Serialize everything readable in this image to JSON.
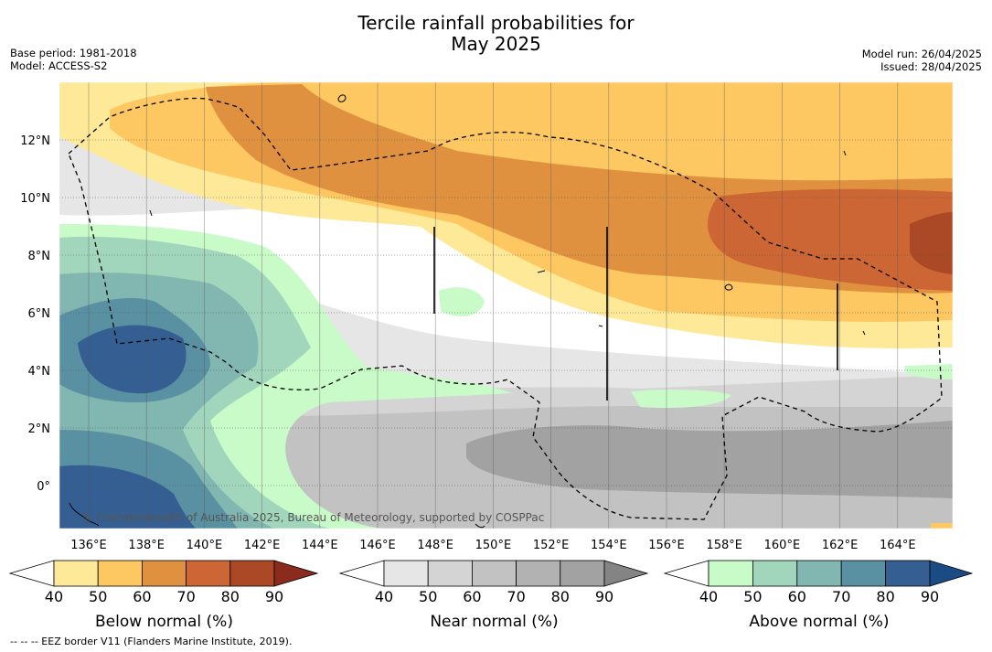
{
  "header": {
    "title_line1": "Tercile rainfall probabilities for",
    "title_line2": "May 2025",
    "base_period": "Base period: 1981-2018",
    "model": "Model: ACCESS-S2",
    "model_run": "Model run: 26/04/2025",
    "issued": "Issued: 28/04/2025"
  },
  "map": {
    "lat_ticks": [
      "12°N",
      "10°N",
      "8°N",
      "6°N",
      "4°N",
      "2°N",
      "0°"
    ],
    "lon_ticks": [
      "136°E",
      "138°E",
      "140°E",
      "142°E",
      "144°E",
      "146°E",
      "148°E",
      "150°E",
      "152°E",
      "154°E",
      "156°E",
      "158°E",
      "160°E",
      "162°E",
      "164°E"
    ],
    "copyright": "© Commonwealth of Australia 2025, Bureau of Meteorology, supported by COSPPac",
    "land_color": "#000000",
    "eez_line_color": "#000000"
  },
  "legend": {
    "colorbars": [
      {
        "label": "Below normal (%)",
        "ticks": [
          "40",
          "50",
          "60",
          "70",
          "80",
          "90"
        ],
        "colors": [
          "#ffffff",
          "#fee999",
          "#fdc762",
          "#e09140",
          "#cc6634",
          "#ab4826",
          "#8a2b1d"
        ]
      },
      {
        "label": "Near normal (%)",
        "ticks": [
          "40",
          "50",
          "60",
          "70",
          "80",
          "90"
        ],
        "colors": [
          "#ffffff",
          "#e6e6e6",
          "#d4d4d4",
          "#c2c2c2",
          "#b2b2b2",
          "#a2a2a2",
          "#848484"
        ]
      },
      {
        "label": "Above normal (%)",
        "ticks": [
          "40",
          "50",
          "60",
          "70",
          "80",
          "90"
        ],
        "colors": [
          "#ffffff",
          "#c9fbc9",
          "#a1d6bc",
          "#82b6b0",
          "#5990a2",
          "#355f92",
          "#1b4b84"
        ]
      }
    ]
  },
  "footnote": "--  --  -- EEZ border V11 (Flanders Marine Institute, 2019)."
}
